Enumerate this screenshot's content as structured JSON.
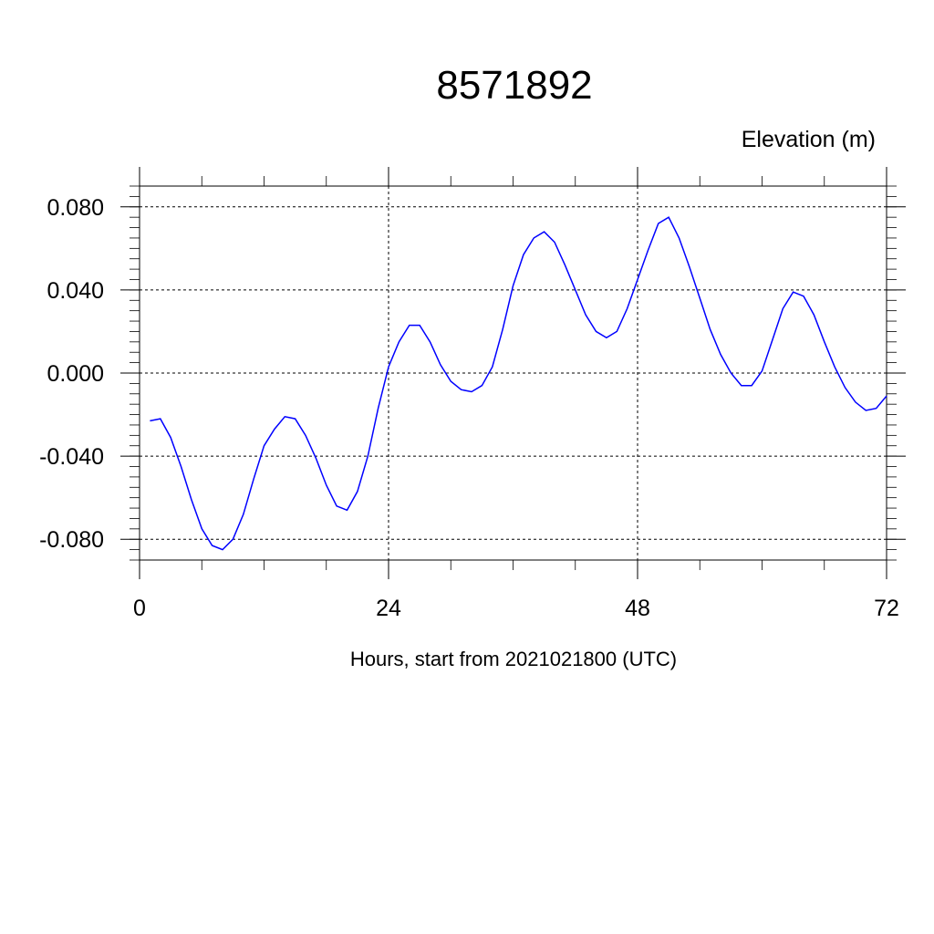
{
  "chart_data": {
    "type": "line",
    "title": "8571892",
    "ylabel": "Elevation (m)",
    "xlabel": "Hours, start from 2021021800 (UTC)",
    "xlim": [
      0,
      72
    ],
    "ylim": [
      -0.09,
      0.09
    ],
    "x_ticks": [
      0,
      24,
      48,
      72
    ],
    "x_tick_labels": [
      "0",
      "24",
      "48",
      "72"
    ],
    "y_ticks": [
      0.08,
      0.04,
      0.0,
      -0.04,
      -0.08
    ],
    "y_tick_labels": [
      "0.080",
      "0.040",
      "0.000",
      "-0.040",
      "-0.080"
    ],
    "grid": true,
    "grid_style": "dashed",
    "colors": {
      "line": "#0000ff",
      "axes": "#000000",
      "grid": "#000000"
    },
    "series": [
      {
        "x": [
          1,
          2,
          3,
          4,
          5,
          6,
          7,
          8,
          9,
          10,
          11,
          12,
          13,
          14,
          15,
          16,
          17,
          18,
          19,
          20,
          21,
          22,
          23,
          24,
          25,
          26,
          27,
          28,
          29,
          30,
          31,
          32,
          33,
          34,
          35,
          36,
          37,
          38,
          39,
          40,
          41,
          42,
          43,
          44,
          45,
          46,
          47,
          48,
          49,
          50,
          51,
          52,
          53,
          54,
          55,
          56,
          57,
          58,
          59,
          60,
          61,
          62,
          63,
          64,
          65,
          66,
          67,
          68,
          69,
          70,
          71,
          72
        ],
        "y": [
          -0.023,
          -0.022,
          -0.031,
          -0.045,
          -0.061,
          -0.075,
          -0.083,
          -0.085,
          -0.08,
          -0.068,
          -0.051,
          -0.035,
          -0.027,
          -0.021,
          -0.022,
          -0.03,
          -0.041,
          -0.054,
          -0.064,
          -0.066,
          -0.057,
          -0.04,
          -0.017,
          0.003,
          0.015,
          0.023,
          0.023,
          0.015,
          0.004,
          -0.004,
          -0.008,
          -0.009,
          -0.006,
          0.003,
          0.021,
          0.042,
          0.057,
          0.065,
          0.068,
          0.063,
          0.052,
          0.04,
          0.028,
          0.02,
          0.017,
          0.02,
          0.031,
          0.045,
          0.059,
          0.072,
          0.075,
          0.065,
          0.051,
          0.036,
          0.021,
          0.009,
          0.0,
          -0.006,
          -0.006,
          0.001,
          0.016,
          0.031,
          0.039,
          0.037,
          0.028,
          0.015,
          0.003,
          -0.007,
          -0.014,
          -0.018,
          -0.017,
          -0.011
        ]
      }
    ]
  }
}
